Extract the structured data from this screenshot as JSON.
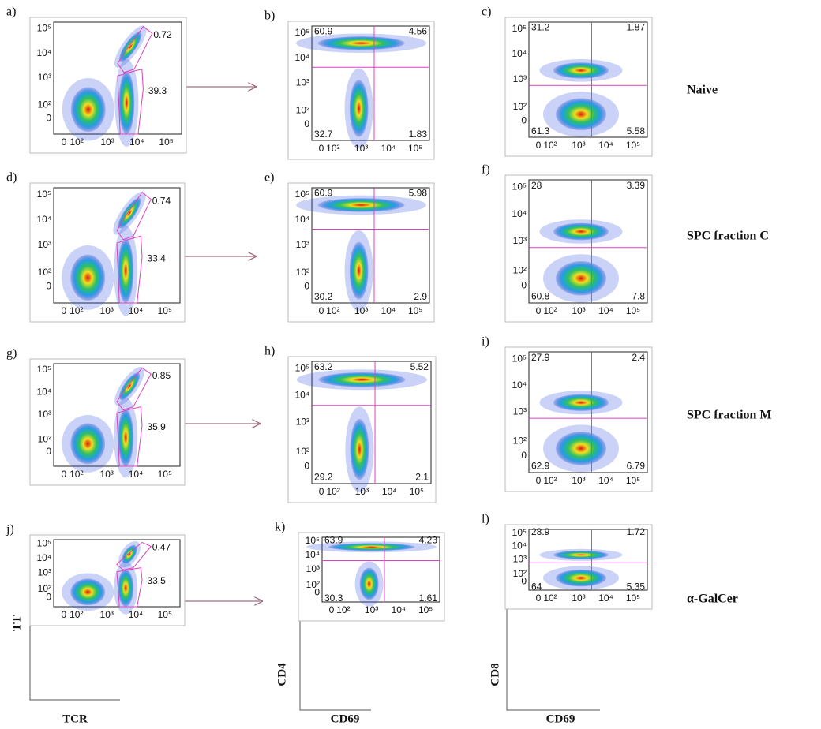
{
  "panels": [
    {
      "label": "a)",
      "values": [
        "0.72",
        "39.3"
      ]
    },
    {
      "label": "b)",
      "values": [
        "60.9",
        "4.56",
        "32.7",
        "1.83"
      ]
    },
    {
      "label": "c)",
      "values": [
        "31.2",
        "1.87",
        "61.3",
        "5.58"
      ]
    },
    {
      "label": "d)",
      "values": [
        "0.74",
        "33.4"
      ]
    },
    {
      "label": "e)",
      "values": [
        "60.9",
        "5.98",
        "30.2",
        "2.9"
      ]
    },
    {
      "label": "f)",
      "values": [
        "28",
        "3.39",
        "60.8",
        "7.8"
      ]
    },
    {
      "label": "g)",
      "values": [
        "0.85",
        "35.9"
      ]
    },
    {
      "label": "h)",
      "values": [
        "63.2",
        "5.52",
        "29.2",
        "2.1"
      ]
    },
    {
      "label": "i)",
      "values": [
        "27.9",
        "2.4",
        "62.9",
        "6.79"
      ]
    },
    {
      "label": "j)",
      "values": [
        "0.47",
        "33.5"
      ]
    },
    {
      "label": "k)",
      "values": [
        "63.9",
        "4.23",
        "30.3",
        "1.61"
      ]
    },
    {
      "label": "l)",
      "values": [
        "28.9",
        "1.72",
        "64",
        "5.35"
      ]
    }
  ],
  "y_tick_labels": [
    "10⁵",
    "10⁴",
    "10³",
    "10²",
    "0"
  ],
  "x_tick_labels": [
    "0",
    "10²",
    "10³",
    "10⁴",
    "10⁵"
  ],
  "row_labels": [
    "Naive",
    "SPC fraction C",
    "SPC fraction M",
    "α-GalCer"
  ],
  "axis_labels": {
    "col1_y": "TT",
    "col1_x": "TCR",
    "col2_y": "CD4",
    "col2_x": "CD69",
    "col3_y": "CD8",
    "col3_x": "CD69"
  }
}
